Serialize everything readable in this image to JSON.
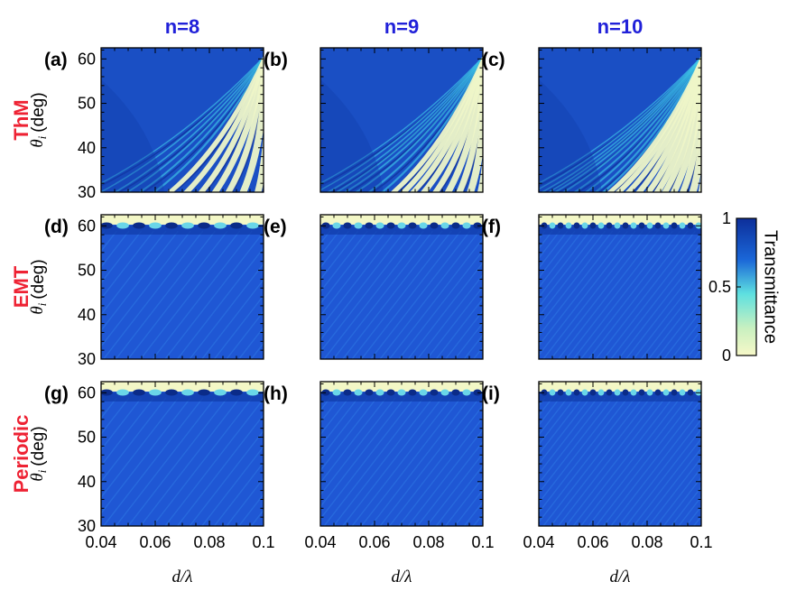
{
  "chart_data": {
    "type": "heatmap",
    "columns": [
      "n=8",
      "n=9",
      "n=10"
    ],
    "rows": [
      "ThM",
      "EMT",
      "Periodic"
    ],
    "panels": [
      {
        "label": "(a)",
        "row": "ThM",
        "col": "n=8"
      },
      {
        "label": "(b)",
        "row": "ThM",
        "col": "n=9"
      },
      {
        "label": "(c)",
        "row": "ThM",
        "col": "n=10"
      },
      {
        "label": "(d)",
        "row": "EMT",
        "col": "n=8"
      },
      {
        "label": "(e)",
        "row": "EMT",
        "col": "n=9"
      },
      {
        "label": "(f)",
        "row": "EMT",
        "col": "n=10"
      },
      {
        "label": "(g)",
        "row": "Periodic",
        "col": "n=8"
      },
      {
        "label": "(h)",
        "row": "Periodic",
        "col": "n=9"
      },
      {
        "label": "(i)",
        "row": "Periodic",
        "col": "n=10"
      }
    ],
    "xlim": [
      0.04,
      0.1
    ],
    "xticks": [
      0.04,
      0.06,
      0.08,
      0.1
    ],
    "xtick_labels": [
      "0.04",
      "0.06",
      "0.08",
      "0.1"
    ],
    "ylim": [
      30,
      62.5
    ],
    "yticks": [
      30,
      40,
      50,
      60
    ],
    "ytick_labels": [
      "30",
      "40",
      "50",
      "60"
    ],
    "xlabel": "d/λ",
    "ylabel_symbol": "θ",
    "ylabel_sub": "i",
    "ylabel_unit": "(deg)",
    "colorbar": {
      "title": "Transmittance",
      "range": [
        0,
        1
      ],
      "ticks": [
        0,
        0.5,
        1
      ],
      "tick_labels": [
        "0",
        "0.5",
        "1"
      ],
      "colors": [
        "#f7f8c8",
        "#5ee0e0",
        "#1a66d8",
        "#0d2f9a"
      ]
    }
  }
}
